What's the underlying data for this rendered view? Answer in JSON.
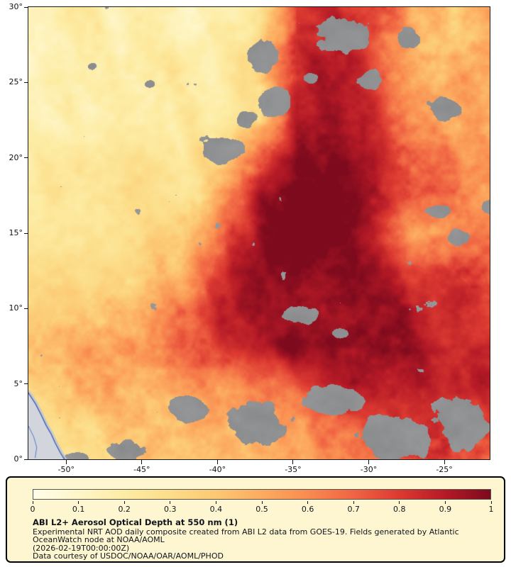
{
  "legend": {
    "title": "ABI L2+ Aerosol Optical Depth at 550 nm (1)",
    "description_line1": "Experimental NRT AOD daily composite created from ABI L2 data from GOES-19. Fields generated by Atlantic",
    "description_line2": "OceanWatch node at NOAA/AOML",
    "timestamp": "(2026-02-19T00:00:00Z)",
    "credit": "Data courtesy of USDOC/NOAA/OAR/AOML/PHOD",
    "panel_background": "#fdf6d0",
    "colorbar": {
      "tick_labels": [
        "0",
        "0.1",
        "0.2",
        "0.3",
        "0.4",
        "0.5",
        "0.6",
        "0.7",
        "0.8",
        "0.9",
        "1"
      ],
      "min": 0,
      "max": 1
    }
  },
  "map": {
    "y_axis_ticks": [
      {
        "label": "30°",
        "lat": 30
      },
      {
        "label": "25°",
        "lat": 25
      },
      {
        "label": "20°",
        "lat": 20
      },
      {
        "label": "15°",
        "lat": 15
      },
      {
        "label": "10°",
        "lat": 10
      },
      {
        "label": "5°",
        "lat": 5
      },
      {
        "label": "0°",
        "lat": 0
      }
    ],
    "x_axis_ticks": [
      {
        "label": "-50°",
        "lon": -50
      },
      {
        "label": "-45°",
        "lon": -45
      },
      {
        "label": "-40°",
        "lon": -40
      },
      {
        "label": "-35°",
        "lon": -35
      },
      {
        "label": "-30°",
        "lon": -30
      },
      {
        "label": "-25°",
        "lon": -25
      }
    ]
  },
  "chart_data": {
    "type": "heatmap",
    "title": "ABI L2+ Aerosol Optical Depth at 550 nm (1)",
    "variable": "Aerosol Optical Depth at 550 nm",
    "value_range": [
      0,
      1
    ],
    "lon_range": [
      -52.5,
      -22.0
    ],
    "lat_range": [
      0,
      30
    ],
    "x_tick_lons": [
      -50,
      -45,
      -40,
      -35,
      -30,
      -25
    ],
    "y_tick_lats": [
      30,
      25,
      20,
      15,
      10,
      5,
      0
    ],
    "colormap_stops": [
      "#fffde9",
      "#fef6c8",
      "#fdeca4",
      "#fcdd89",
      "#fcc873",
      "#fcab60",
      "#f98b50",
      "#f06543",
      "#dc3a31",
      "#b51a26",
      "#7d0a1d"
    ],
    "no_data_color": "#8f9092",
    "land_color": "#d2d6dc",
    "coast_color": "#3a57b5",
    "aod_grid": {
      "lons": [
        -52.5,
        -49.96,
        -47.42,
        -44.88,
        -42.33,
        -39.79,
        -37.25,
        -34.71,
        -32.17,
        -29.63,
        -27.08,
        -24.54,
        -22.0
      ],
      "lats": [
        30,
        27.5,
        25,
        22.5,
        20,
        17.5,
        15,
        12.5,
        10,
        7.5,
        5,
        2.5,
        0
      ],
      "values": [
        [
          0.15,
          0.16,
          0.17,
          0.18,
          0.2,
          0.22,
          0.25,
          0.8,
          0.9,
          0.85,
          0.5,
          0.4,
          0.45
        ],
        [
          0.15,
          0.16,
          0.17,
          0.18,
          0.2,
          0.24,
          0.3,
          0.8,
          0.92,
          0.8,
          0.5,
          0.42,
          0.5
        ],
        [
          0.18,
          0.2,
          0.2,
          0.22,
          0.24,
          0.25,
          0.35,
          0.85,
          0.95,
          0.85,
          0.55,
          0.5,
          0.55
        ],
        [
          0.18,
          0.2,
          0.22,
          0.24,
          0.25,
          0.28,
          0.4,
          0.9,
          0.95,
          0.9,
          0.6,
          0.55,
          0.5
        ],
        [
          0.2,
          0.22,
          0.24,
          0.26,
          0.28,
          0.35,
          0.7,
          0.95,
          0.97,
          0.9,
          0.7,
          0.6,
          0.55
        ],
        [
          0.22,
          0.24,
          0.26,
          0.28,
          0.3,
          0.5,
          0.9,
          0.98,
          0.98,
          0.9,
          0.75,
          0.65,
          0.55
        ],
        [
          0.24,
          0.26,
          0.28,
          0.3,
          0.38,
          0.7,
          0.95,
          1.0,
          0.98,
          0.85,
          0.6,
          0.55,
          0.65
        ],
        [
          0.26,
          0.28,
          0.3,
          0.35,
          0.5,
          0.85,
          0.98,
          1.0,
          0.95,
          0.9,
          0.8,
          0.78,
          0.72
        ],
        [
          0.3,
          0.33,
          0.38,
          0.45,
          0.6,
          0.9,
          0.95,
          0.95,
          0.95,
          0.92,
          0.9,
          0.85,
          0.8
        ],
        [
          0.4,
          0.45,
          0.5,
          0.55,
          0.65,
          0.8,
          0.95,
          1.0,
          0.98,
          0.95,
          0.92,
          0.9,
          0.85
        ],
        [
          0.4,
          0.45,
          0.5,
          0.5,
          0.55,
          0.6,
          0.7,
          0.8,
          0.9,
          0.92,
          0.9,
          0.88,
          0.85
        ],
        [
          0.3,
          0.35,
          0.4,
          0.42,
          0.45,
          0.5,
          0.55,
          0.6,
          0.7,
          0.8,
          0.8,
          0.8,
          0.78
        ],
        [
          0.25,
          0.3,
          0.35,
          0.4,
          0.42,
          0.45,
          0.5,
          0.55,
          0.6,
          0.7,
          0.75,
          0.75,
          0.7
        ]
      ]
    },
    "cloud_regions": [
      {
        "lon": -37.1,
        "lat": 26.9,
        "rx": 1.4,
        "ry": 1.5
      },
      {
        "lon": -36.2,
        "lat": 23.7,
        "rx": 1.6,
        "ry": 1.1
      },
      {
        "lon": -38.2,
        "lat": 22.6,
        "rx": 1.0,
        "ry": 0.8
      },
      {
        "lon": -39.9,
        "lat": 20.6,
        "rx": 1.9,
        "ry": 1.3
      },
      {
        "lon": -31.6,
        "lat": 28.3,
        "rx": 2.9,
        "ry": 1.6
      },
      {
        "lon": -33.9,
        "lat": 25.3,
        "rx": 0.7,
        "ry": 0.6
      },
      {
        "lon": -30.0,
        "lat": 25.2,
        "rx": 1.1,
        "ry": 0.9
      },
      {
        "lon": -27.4,
        "lat": 27.9,
        "rx": 1.1,
        "ry": 1.0
      },
      {
        "lon": -24.9,
        "lat": 23.3,
        "rx": 1.6,
        "ry": 1.1
      },
      {
        "lon": -25.3,
        "lat": 16.5,
        "rx": 1.1,
        "ry": 0.6
      },
      {
        "lon": -24.0,
        "lat": 14.7,
        "rx": 1.0,
        "ry": 0.7
      },
      {
        "lon": -21.9,
        "lat": 16.8,
        "rx": 0.8,
        "ry": 0.6
      },
      {
        "lon": -34.6,
        "lat": 9.5,
        "rx": 1.8,
        "ry": 0.8
      },
      {
        "lon": -31.9,
        "lat": 8.4,
        "rx": 0.8,
        "ry": 0.5
      },
      {
        "lon": -48.3,
        "lat": 26.1,
        "rx": 0.5,
        "ry": 0.4
      },
      {
        "lon": -44.5,
        "lat": 24.9,
        "rx": 0.55,
        "ry": 0.4
      },
      {
        "lon": -41.9,
        "lat": 3.4,
        "rx": 1.8,
        "ry": 1.2
      },
      {
        "lon": -37.5,
        "lat": 2.3,
        "rx": 2.9,
        "ry": 2.0
      },
      {
        "lon": -32.3,
        "lat": 3.9,
        "rx": 2.4,
        "ry": 1.3
      },
      {
        "lon": -28.6,
        "lat": 1.3,
        "rx": 3.4,
        "ry": 2.1
      },
      {
        "lon": -23.9,
        "lat": 2.6,
        "rx": 2.5,
        "ry": 2.3
      },
      {
        "lon": -45.9,
        "lat": 0.6,
        "rx": 1.5,
        "ry": 1.0
      },
      {
        "lon": -49.2,
        "lat": 0.0,
        "rx": 1.1,
        "ry": 0.7
      }
    ],
    "coastline": [
      [
        -52.5,
        4.4
      ],
      [
        -52.02,
        3.66
      ],
      [
        -51.66,
        2.95
      ],
      [
        -51.33,
        2.25
      ],
      [
        -51.0,
        1.68
      ],
      [
        -50.72,
        1.07
      ],
      [
        -50.4,
        0.46
      ],
      [
        -50.12,
        0.0
      ]
    ],
    "river": [
      [
        -52.5,
        2.2
      ],
      [
        -52.15,
        1.5
      ],
      [
        -51.95,
        0.8
      ],
      [
        -52.05,
        0.1
      ]
    ]
  }
}
